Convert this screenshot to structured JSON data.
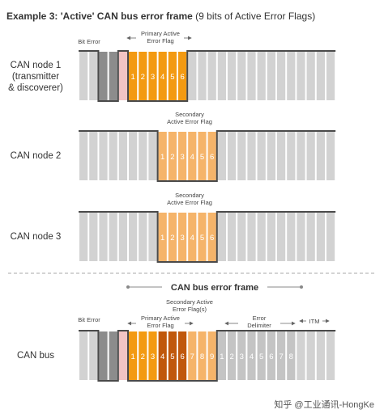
{
  "title": {
    "bold": "Example 3: 'Active' CAN bus error frame",
    "normal": "(9 bits of Active Error Flags)"
  },
  "rows": {
    "node1": {
      "label": [
        "CAN node 1",
        "(transmitter",
        "& discoverer)"
      ],
      "bit_error_label": "Bit Error",
      "flag_label": [
        "Primary Active",
        "Error Flag"
      ],
      "flag_bits": [
        "1",
        "2",
        "3",
        "4",
        "5",
        "6"
      ]
    },
    "node2": {
      "label": [
        "CAN node 2"
      ],
      "flag_label": [
        "Secondary",
        "Active Error Flag"
      ],
      "flag_bits": [
        "1",
        "2",
        "3",
        "4",
        "5",
        "6"
      ]
    },
    "node3": {
      "label": [
        "CAN node 3"
      ],
      "flag_label": [
        "Secondary",
        "Active Error Flag"
      ],
      "flag_bits": [
        "1",
        "2",
        "3",
        "4",
        "5",
        "6"
      ]
    }
  },
  "bus": {
    "heading": "CAN bus error frame",
    "label": [
      "CAN bus"
    ],
    "bit_error_label": "Bit Error",
    "primary_label": [
      "Primary Active",
      "Error Flag"
    ],
    "secondary_label": [
      "Secondary Active",
      "Error Flag(s)"
    ],
    "delimiter_label": [
      "Error",
      "Delimiter"
    ],
    "itm_label": "ITM",
    "flag_bits": [
      "1",
      "2",
      "3",
      "4",
      "5",
      "6",
      "7",
      "8",
      "9"
    ],
    "delimiter_bits": [
      "1",
      "2",
      "3",
      "4",
      "5",
      "6",
      "7",
      "8"
    ]
  },
  "watermark": "知乎 @工业通讯-HongKe",
  "colors": {
    "recessive": "#d2d2d2",
    "dominant_gray": "#8c8c8c",
    "primary_flag": "#f39a12",
    "secondary_flag": "#f5b46a",
    "overlap_flag": "#c0580c",
    "bit_error_pink": "#f2c4c4",
    "line": "#4a4a4a"
  }
}
